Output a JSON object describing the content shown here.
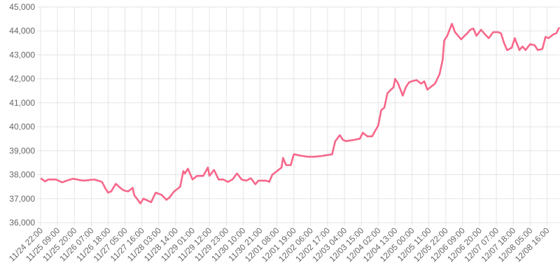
{
  "chart_data": {
    "type": "line",
    "categories": [
      "11/24 22:00",
      null,
      null,
      null,
      null,
      null,
      null,
      null,
      null,
      null,
      null,
      "11/25 09:00",
      null,
      null,
      null,
      null,
      null,
      null,
      null,
      null,
      null,
      null,
      "11/25 20:00",
      null,
      null,
      null,
      null,
      null,
      null,
      null,
      null,
      null,
      null,
      "11/26 07:00",
      null,
      null,
      null,
      null,
      null,
      null,
      null,
      null,
      null,
      null,
      "11/26 18:00",
      null,
      null,
      null,
      null,
      null,
      null,
      null,
      null,
      null,
      null,
      "11/27 05:00",
      null,
      null,
      null,
      null,
      null,
      null,
      null,
      null,
      null,
      null,
      "11/27 16:00",
      null,
      null,
      null,
      null,
      null,
      null,
      null,
      null,
      null,
      null,
      "11/28 03:00",
      null,
      null,
      null,
      null,
      null,
      null,
      null,
      null,
      null,
      null,
      "11/28 14:00",
      null,
      null,
      null,
      null,
      null,
      null,
      null,
      null,
      null,
      null,
      "11/29 01:00",
      null,
      null,
      null,
      null,
      null,
      null,
      null,
      null,
      null,
      null,
      "11/29 12:00",
      null,
      null,
      null,
      null,
      null,
      null,
      null,
      null,
      null,
      null,
      "11/29 23:00",
      null,
      null,
      null,
      null,
      null,
      null,
      null,
      null,
      null,
      null,
      "11/30 10:00",
      null,
      null,
      null,
      null,
      null,
      null,
      null,
      null,
      null,
      null,
      "11/30 21:00",
      null,
      null,
      null,
      null,
      null,
      null,
      null,
      null,
      null,
      null,
      "12/01 08:00",
      null,
      null,
      null,
      null,
      null,
      null,
      null,
      null,
      null,
      null,
      "12/01 19:00",
      null,
      null,
      null,
      null,
      null,
      null,
      null,
      null,
      null,
      null,
      "12/02 06:00",
      null,
      null,
      null,
      null,
      null,
      null,
      null,
      null,
      null,
      null,
      "12/02 17:00",
      null,
      null,
      null,
      null,
      null,
      null,
      null,
      null,
      null,
      null,
      "12/03 04:00",
      null,
      null,
      null,
      null,
      null,
      null,
      null,
      null,
      null,
      null,
      "12/03 15:00",
      null,
      null,
      null,
      null,
      null,
      null,
      null,
      null,
      null,
      null,
      "12/04 02:00",
      null,
      null,
      null,
      null,
      null,
      null,
      null,
      null,
      null,
      null,
      "12/04 13:00",
      null,
      null,
      null,
      null,
      null,
      null,
      null,
      null,
      null,
      null,
      "12/05 00:00",
      null,
      null,
      null,
      null,
      null,
      null,
      null,
      null,
      null,
      null,
      "12/05 11:00",
      null,
      null,
      null,
      null,
      null,
      null,
      null,
      null,
      null,
      null,
      "12/05 22:00",
      null,
      null,
      null,
      null,
      null,
      null,
      null,
      null,
      null,
      null,
      "12/06 09:00",
      null,
      null,
      null,
      null,
      null,
      null,
      null,
      null,
      null,
      null,
      "12/06 20:00",
      null,
      null,
      null,
      null,
      null,
      null,
      null,
      null,
      null,
      null,
      "12/07 07:00",
      null,
      null,
      null,
      null,
      null,
      null,
      null,
      null,
      null,
      null,
      "12/07 18:00",
      null,
      null,
      null,
      null,
      null,
      null,
      null,
      null,
      null,
      null,
      "12/08 05:00",
      null,
      null,
      null,
      null,
      null,
      null,
      null,
      null,
      null,
      null,
      "12/08 16:00",
      null,
      null,
      null,
      null,
      null,
      null,
      null,
      null
    ],
    "series": [
      {
        "color": "#f7678a",
        "values": [
          37850,
          37810,
          37760,
          37720,
          37760,
          37800,
          37800,
          37800,
          37800,
          37800,
          37800,
          37770,
          37740,
          37710,
          37680,
          37700,
          37730,
          37750,
          37770,
          37790,
          37810,
          37830,
          37820,
          37810,
          37800,
          37780,
          37770,
          37760,
          37750,
          37760,
          37760,
          37770,
          37780,
          37790,
          37790,
          37800,
          37780,
          37760,
          37740,
          37720,
          37700,
          37580,
          37450,
          37350,
          37250,
          37280,
          37300,
          37410,
          37510,
          37620,
          37560,
          37500,
          37450,
          37400,
          37350,
          37330,
          37320,
          37300,
          37350,
          37400,
          37450,
          37150,
          37060,
          36980,
          36890,
          36800,
          36900,
          37000,
          36970,
          36940,
          36910,
          36880,
          36850,
          36980,
          37120,
          37250,
          37230,
          37200,
          37180,
          37150,
          37080,
          37020,
          36950,
          37000,
          37050,
          37130,
          37220,
          37300,
          37350,
          37400,
          37450,
          37500,
          37830,
          38150,
          38050,
          38150,
          38250,
          38100,
          37950,
          37800,
          37850,
          37900,
          37950,
          37950,
          37950,
          37950,
          37950,
          38070,
          38180,
          38300,
          37950,
          38030,
          38120,
          38200,
          38070,
          37930,
          37800,
          37800,
          37800,
          37800,
          37770,
          37730,
          37700,
          37730,
          37770,
          37800,
          37880,
          37970,
          38050,
          37970,
          37880,
          37800,
          37780,
          37770,
          37750,
          37780,
          37820,
          37850,
          37770,
          37680,
          37600,
          37680,
          37750,
          37750,
          37750,
          37750,
          37750,
          37750,
          37730,
          37700,
          37850,
          38000,
          38050,
          38100,
          38150,
          38200,
          38250,
          38300,
          38700,
          38550,
          38400,
          38400,
          38400,
          38400,
          38630,
          38850,
          38840,
          38830,
          38810,
          38800,
          38790,
          38780,
          38770,
          38760,
          38750,
          38750,
          38750,
          38750,
          38750,
          38750,
          38760,
          38770,
          38770,
          38780,
          38790,
          38800,
          38810,
          38820,
          38830,
          38840,
          38850,
          39130,
          39400,
          39480,
          39570,
          39650,
          39550,
          39450,
          39430,
          39400,
          39410,
          39420,
          39430,
          39440,
          39450,
          39460,
          39480,
          39490,
          39500,
          39630,
          39750,
          39700,
          39650,
          39600,
          39600,
          39600,
          39600,
          39710,
          39830,
          39940,
          40050,
          40380,
          40700,
          40750,
          40800,
          41100,
          41400,
          41460,
          41530,
          41590,
          41650,
          42000,
          41900,
          41800,
          41630,
          41470,
          41300,
          41480,
          41650,
          41750,
          41850,
          41880,
          41900,
          41920,
          41930,
          41950,
          41900,
          41850,
          41800,
          41850,
          41900,
          41730,
          41550,
          41600,
          41650,
          41700,
          41750,
          41800,
          41930,
          42070,
          42200,
          42500,
          42800,
          43600,
          43700,
          43800,
          43970,
          44130,
          44300,
          44130,
          43950,
          43880,
          43800,
          43730,
          43650,
          43710,
          43780,
          43840,
          43900,
          43980,
          44050,
          44080,
          44100,
          43950,
          43800,
          43880,
          43970,
          44050,
          43980,
          43900,
          43830,
          43770,
          43700,
          43780,
          43870,
          43950,
          43950,
          43950,
          43950,
          43930,
          43900,
          43700,
          43500,
          43350,
          43200,
          43230,
          43270,
          43300,
          43500,
          43700,
          43530,
          43370,
          43200,
          43280,
          43350,
          43280,
          43200,
          43280,
          43370,
          43450,
          43430,
          43420,
          43400,
          43300,
          43200,
          43220,
          43230,
          43250,
          43500,
          43750,
          43730,
          43700,
          43750,
          43800,
          43850,
          43880,
          43900,
          44030,
          44150
        ]
      }
    ],
    "ylim": [
      36000,
      45000
    ],
    "yticks": [
      {
        "value": 36000,
        "label": "36,000"
      },
      {
        "value": 37000,
        "label": "37,000"
      },
      {
        "value": 38000,
        "label": "38,000"
      },
      {
        "value": 39000,
        "label": "39,000"
      },
      {
        "value": 40000,
        "label": "40,000"
      },
      {
        "value": 41000,
        "label": "41,000"
      },
      {
        "value": 42000,
        "label": "42,000"
      },
      {
        "value": 43000,
        "label": "43,000"
      },
      {
        "value": 44000,
        "label": "44,000"
      },
      {
        "value": 45000,
        "label": "45,000"
      }
    ],
    "grid": true
  }
}
